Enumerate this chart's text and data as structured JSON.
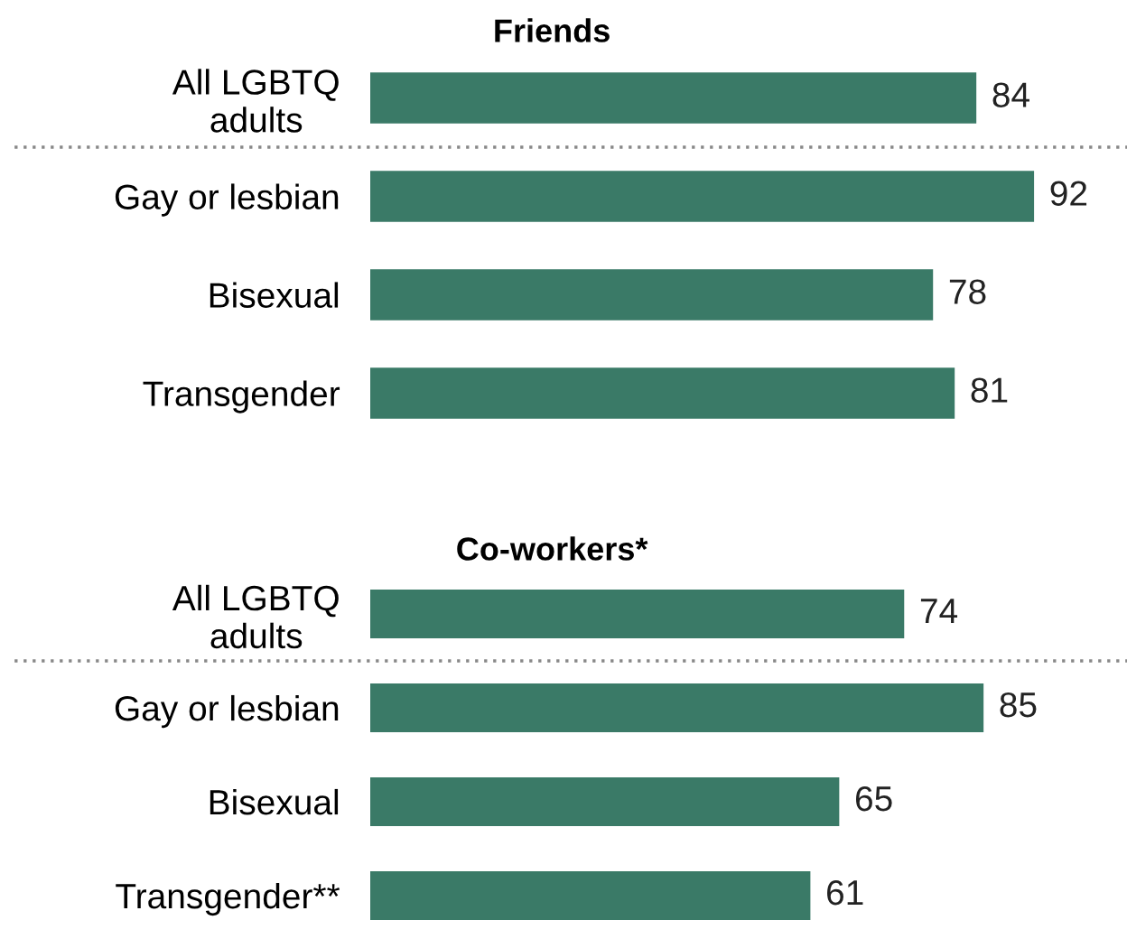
{
  "chart_data": [
    {
      "type": "bar",
      "orientation": "horizontal",
      "title": "Friends",
      "categories": [
        "All LGBTQ\nadults",
        "Gay or lesbian",
        "Bisexual",
        "Transgender"
      ],
      "values": [
        84,
        92,
        78,
        81
      ],
      "color": "#3a7a67",
      "data_labels": true,
      "grid": false,
      "legend": false
    },
    {
      "type": "bar",
      "orientation": "horizontal",
      "title": "Co-workers*",
      "categories": [
        "All LGBTQ\nadults",
        "Gay or lesbian",
        "Bisexual",
        "Transgender**"
      ],
      "values": [
        74,
        85,
        65,
        61
      ],
      "color": "#3a7a67",
      "data_labels": true,
      "grid": false,
      "legend": false
    }
  ]
}
